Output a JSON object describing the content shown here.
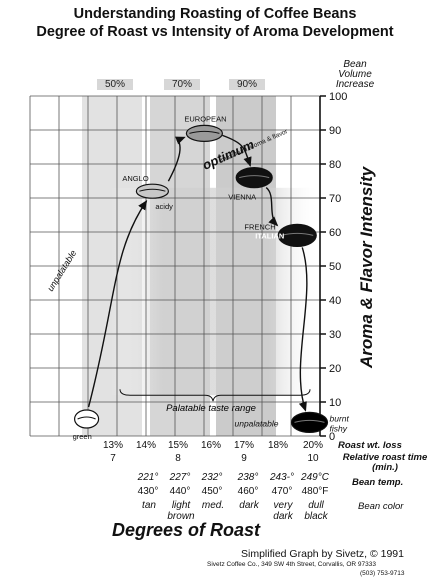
{
  "title": "Understanding Roasting of Coffee Beans",
  "subtitle": "Degree of Roast vs Intensity of Aroma Development",
  "bean_volume_label": [
    "Bean",
    "Volume",
    "Increase"
  ],
  "volume_increase": [
    "50%",
    "70%",
    "90%"
  ],
  "chart_data": {
    "type": "line",
    "title": "Understanding Roasting of Coffee Beans",
    "subtitle": "Degree of Roast vs Intensity of Aroma Development",
    "xlabel": "Degrees of Roast",
    "ylabel": "Aroma & Flavor Intensity",
    "ylim": [
      0,
      100
    ],
    "yticks": [
      0,
      10,
      20,
      30,
      40,
      50,
      60,
      70,
      80,
      90,
      100
    ],
    "x_categories": [
      "13%",
      "14%",
      "15%",
      "16%",
      "17%",
      "18%",
      "20%"
    ],
    "x_axis_name": "Roast wt. loss",
    "roast_time_label": "Relative roast time (min.)",
    "roast_times": [
      "7",
      "",
      "8",
      "",
      "9",
      "",
      "10"
    ],
    "temps_c": [
      "221°",
      "227°",
      "232°",
      "238°",
      "243-°",
      "249°C"
    ],
    "temps_f": [
      "430°",
      "440°",
      "450°",
      "460°",
      "470°",
      "480°F"
    ],
    "temp_label": "Bean temp.",
    "bean_colors": [
      "tan",
      "light brown",
      "med.",
      "dark",
      "very dark",
      "dull black"
    ],
    "bean_color_label": "Bean color",
    "grid": true,
    "palatable_label": "Palatable taste range",
    "optimum_label": "optimum",
    "optimum_sub": "maximum aroma & flavor",
    "unpalatable_label": "unpalatable",
    "points": [
      {
        "name": "green",
        "x": 12.2,
        "y": 5
      },
      {
        "name": "ANGLO",
        "x": 14.2,
        "y": 72,
        "note": "acidy"
      },
      {
        "name": "EUROPEAN",
        "x": 15.8,
        "y": 89
      },
      {
        "name": "VIENNA",
        "x": 17.3,
        "y": 76
      },
      {
        "name": "FRENCH",
        "x": 17.6,
        "y": 66
      },
      {
        "name": "ITALIAN",
        "x": 19.1,
        "y": 59
      },
      {
        "name": "unpalatable",
        "x": 19.8,
        "y": 4,
        "note": "burnt fishy"
      }
    ]
  },
  "footer": {
    "line1": "Simplified Graph by Sivetz, © 1991",
    "line2": "Sivetz Coffee Co., 349 SW 4th Street, Corvallis, OR  97333",
    "line3": "(503) 753-9713"
  }
}
